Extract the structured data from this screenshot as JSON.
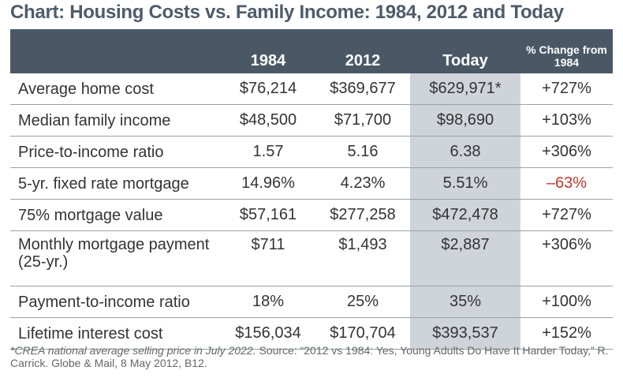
{
  "title": "Chart: Housing Costs vs. Family Income: 1984, 2012 and Today",
  "table": {
    "header": [
      "1984",
      "2012",
      "Today",
      "% Change from 1984"
    ],
    "rows": [
      [
        "Average home cost",
        "$76,214",
        "$369,677",
        "$629,971*",
        "+727%"
      ],
      [
        "Median family income",
        "$48,500",
        "$71,700",
        "$98,690",
        "+103%"
      ],
      [
        "Price-to-income ratio",
        "1.57",
        "5.16",
        "6.38",
        "+306%"
      ],
      [
        "5-yr. fixed rate mortgage",
        "14.96%",
        "4.23%",
        "5.51%",
        "–63%"
      ],
      [
        "75% mortgage value",
        "$57,161",
        "$277,258",
        "$472,478",
        "+727%"
      ],
      [
        "Monthly mortgage payment (25-yr.)",
        "$711",
        "$1,493",
        "$2,887",
        "+306%"
      ],
      [
        "Payment-to-income ratio",
        "18%",
        "25%",
        "35%",
        "+100%"
      ],
      [
        "Lifetime interest cost",
        "$156,034",
        "$170,704",
        "$393,537",
        "+152%"
      ]
    ]
  },
  "footnote": {
    "note": "*CREA national average selling price in July 2022.",
    "source": "Source: “2012 vs 1984: Yes, Young Adults Do Have It Harder Today,” R. Carrick. Globe & Mail, 8 May 2012, B12."
  }
}
